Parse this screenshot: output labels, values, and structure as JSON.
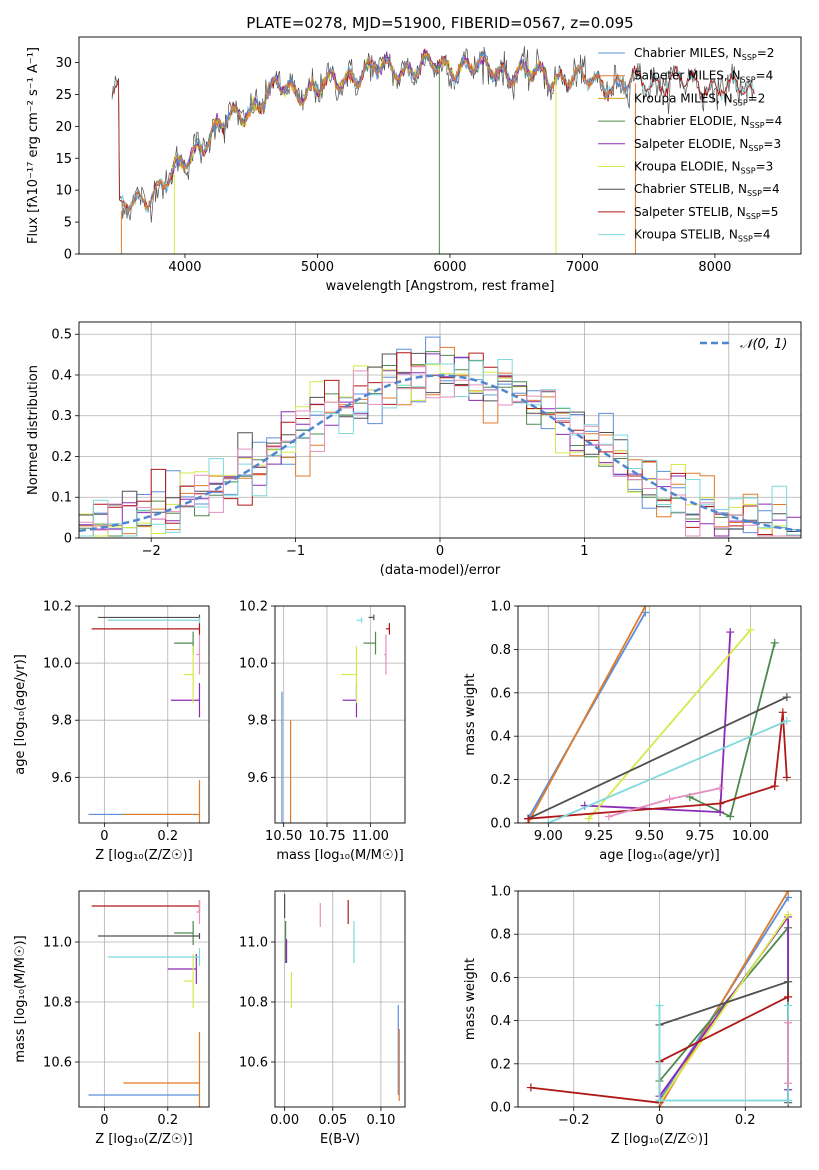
{
  "figure": {
    "title": "PLATE=0278, MJD=51900, FIBERID=0567, z=0.095"
  },
  "colors": {
    "Chabrier MILES": "#5b8fdc",
    "Salpeter MILES": "#e07b2a",
    "Kroupa MILES": "#d4a017",
    "Chabrier ELODIE": "#4d8a4d",
    "Salpeter ELODIE": "#8b2ab5",
    "Kroupa ELODIE": "#d8e84a",
    "Chabrier STELIB": "#505050",
    "Salpeter STELIB": "#b01818",
    "Kroupa STELIB": "#7fd9dc",
    "Pink": "#e58fc0"
  },
  "chart_data": [
    {
      "id": "spectrum",
      "type": "line",
      "xlabel": "wavelength [Angstrom, rest frame]",
      "ylabel": "Flux [fλ10⁻¹⁷ erg cm⁻² s⁻¹ A⁻¹]",
      "xlim": [
        3200,
        8650
      ],
      "ylim": [
        0,
        34
      ],
      "xticks": [
        4000,
        5000,
        6000,
        7000,
        8000
      ],
      "yticks": [
        0,
        5,
        10,
        15,
        20,
        25,
        30
      ],
      "grid": false,
      "legend_position": "top-right",
      "legend": [
        {
          "name": "Chabrier MILES",
          "nssp": 2
        },
        {
          "name": "Salpeter MILES",
          "nssp": 4
        },
        {
          "name": "Kroupa MILES",
          "nssp": 2
        },
        {
          "name": "Chabrier ELODIE",
          "nssp": 4
        },
        {
          "name": "Salpeter ELODIE",
          "nssp": 3
        },
        {
          "name": "Kroupa ELODIE",
          "nssp": 3
        },
        {
          "name": "Chabrier STELIB",
          "nssp": 4
        },
        {
          "name": "Salpeter STELIB",
          "nssp": 5
        },
        {
          "name": "Kroupa STELIB",
          "nssp": 4
        }
      ],
      "continuum": {
        "x": [
          3500,
          3700,
          3900,
          4100,
          4300,
          4500,
          4700,
          4900,
          5100,
          5300,
          5500,
          5700,
          5900,
          6100,
          6300,
          6500,
          6700,
          6900,
          7100,
          7300,
          7500,
          7700,
          7900,
          8100,
          8400
        ],
        "y": [
          6.5,
          9,
          12,
          17,
          20.5,
          23,
          26,
          25.5,
          26.5,
          28.5,
          29,
          29,
          29.5,
          29.5,
          29,
          28.5,
          28,
          27.5,
          27,
          26.5,
          27,
          27,
          26.5,
          26,
          25.5
        ]
      }
    },
    {
      "id": "residuals",
      "type": "histogram",
      "xlabel": "(data-model)/error",
      "ylabel": "Normed distribution",
      "xlim": [
        -2.5,
        2.5
      ],
      "ylim": [
        0,
        0.53
      ],
      "xticks": [
        -2,
        -1,
        0,
        1,
        2
      ],
      "yticks": [
        0,
        0.1,
        0.2,
        0.3,
        0.4,
        0.5
      ],
      "grid": true,
      "legend_position": "top-right",
      "reference_label": "𝒩(0, 1)",
      "bin_width": 0.1
    },
    {
      "id": "age_vs_Z",
      "type": "scatter",
      "xlabel": "Z [log₁₀(Z/Z☉)]",
      "ylabel": "age  [log₁₀(age/yr)]",
      "xlim": [
        -0.08,
        0.33
      ],
      "ylim": [
        9.44,
        10.2
      ],
      "xticks": [
        0,
        0.2
      ],
      "yticks": [
        9.6,
        9.8,
        10.0,
        10.2
      ],
      "grid": true,
      "points": [
        {
          "series": "Chabrier MILES",
          "x": 0.3,
          "y": 9.47,
          "xerr": 0.35,
          "yerr": 0.0
        },
        {
          "series": "Salpeter MILES",
          "x": 0.3,
          "y": 9.47,
          "xerr": 0.24,
          "yerr": 0.12
        },
        {
          "series": "Chabrier ELODIE",
          "x": 0.28,
          "y": 10.07,
          "xerr": 0.06,
          "yerr": 0.04
        },
        {
          "series": "Salpeter ELODIE",
          "x": 0.3,
          "y": 9.87,
          "xerr": 0.09,
          "yerr": 0.06
        },
        {
          "series": "Kroupa ELODIE",
          "x": 0.28,
          "y": 9.96,
          "xerr": 0.03,
          "yerr": 0.1
        },
        {
          "series": "Chabrier STELIB",
          "x": 0.3,
          "y": 10.16,
          "xerr": 0.32,
          "yerr": 0.01
        },
        {
          "series": "Salpeter STELIB",
          "x": 0.3,
          "y": 10.12,
          "xerr": 0.34,
          "yerr": 0.02
        },
        {
          "series": "Kroupa STELIB",
          "x": 0.3,
          "y": 10.15,
          "xerr": 0.29,
          "yerr": 0.01
        },
        {
          "series": "Pink",
          "x": 0.3,
          "y": 10.03,
          "xerr": 0.01,
          "yerr": 0.07
        }
      ]
    },
    {
      "id": "age_vs_mass",
      "type": "scatter",
      "xlabel": "mass [log₁₀(M/M☉)]",
      "ylabel": "",
      "xlim": [
        10.45,
        11.2
      ],
      "ylim": [
        9.44,
        10.2
      ],
      "xticks": [
        10.5,
        10.75,
        11.0
      ],
      "yticks": [
        9.6,
        9.8,
        10.0,
        10.2
      ],
      "grid": true,
      "points": [
        {
          "series": "Chabrier MILES",
          "x": 10.49,
          "y": 9.47,
          "xerr": 0.0,
          "yerr": 0.43
        },
        {
          "series": "Salpeter MILES",
          "x": 10.54,
          "y": 9.47,
          "xerr": 0.0,
          "yerr": 0.33
        },
        {
          "series": "Chabrier ELODIE",
          "x": 11.03,
          "y": 10.07,
          "xerr": 0.07,
          "yerr": 0.04
        },
        {
          "series": "Salpeter ELODIE",
          "x": 10.92,
          "y": 9.87,
          "xerr": 0.08,
          "yerr": 0.06
        },
        {
          "series": "Kroupa ELODIE",
          "x": 10.92,
          "y": 9.96,
          "xerr": 0.09,
          "yerr": 0.1
        },
        {
          "series": "Chabrier STELIB",
          "x": 11.02,
          "y": 10.16,
          "xerr": 0.03,
          "yerr": 0.01
        },
        {
          "series": "Salpeter STELIB",
          "x": 11.11,
          "y": 10.12,
          "xerr": 0.02,
          "yerr": 0.02
        },
        {
          "series": "Kroupa STELIB",
          "x": 10.95,
          "y": 10.15,
          "xerr": 0.03,
          "yerr": 0.01
        },
        {
          "series": "Pink",
          "x": 11.09,
          "y": 10.03,
          "xerr": 0.01,
          "yerr": 0.07
        }
      ]
    },
    {
      "id": "weight_vs_age",
      "type": "line",
      "xlabel": "age  [log₁₀(age/yr)]",
      "ylabel": "mass weight",
      "xlim": [
        8.85,
        10.25
      ],
      "ylim": [
        0,
        1
      ],
      "xticks": [
        9.0,
        9.25,
        9.5,
        9.75,
        10.0
      ],
      "yticks": [
        0,
        0.2,
        0.4,
        0.6,
        0.8,
        1.0
      ],
      "grid": true,
      "series": [
        {
          "name": "Chabrier MILES",
          "x": [
            8.9,
            9.48
          ],
          "y": [
            0.02,
            0.97
          ]
        },
        {
          "name": "Salpeter MILES",
          "x": [
            8.9,
            9.48
          ],
          "y": [
            0.0,
            1.0
          ]
        },
        {
          "name": "Chabrier ELODIE",
          "x": [
            9.7,
            9.9,
            10.12
          ],
          "y": [
            0.12,
            0.03,
            0.83
          ]
        },
        {
          "name": "Salpeter ELODIE",
          "x": [
            9.18,
            9.85,
            9.9
          ],
          "y": [
            0.08,
            0.05,
            0.88
          ]
        },
        {
          "name": "Kroupa ELODIE",
          "x": [
            9.2,
            10.0
          ],
          "y": [
            0.02,
            0.89
          ]
        },
        {
          "name": "Chabrier STELIB",
          "x": [
            8.9,
            10.18
          ],
          "y": [
            0.02,
            0.58
          ]
        },
        {
          "name": "Salpeter STELIB",
          "x": [
            8.9,
            9.85,
            10.12,
            10.16,
            10.18
          ],
          "y": [
            0.02,
            0.09,
            0.17,
            0.51,
            0.21
          ]
        },
        {
          "name": "Kroupa STELIB",
          "x": [
            9.0,
            10.18
          ],
          "y": [
            0.0,
            0.47
          ]
        },
        {
          "name": "Pink",
          "x": [
            9.3,
            9.6,
            9.85
          ],
          "y": [
            0.03,
            0.11,
            0.16
          ]
        }
      ]
    },
    {
      "id": "mass_vs_Z",
      "type": "scatter",
      "xlabel": "Z [log₁₀(Z/Z☉)]",
      "ylabel": "mass [log₁₀(M/M☉)]",
      "xlim": [
        -0.08,
        0.33
      ],
      "ylim": [
        10.45,
        11.17
      ],
      "xticks": [
        0,
        0.2
      ],
      "yticks": [
        10.6,
        10.8,
        11.0
      ],
      "grid": true,
      "points": [
        {
          "series": "Chabrier MILES",
          "x": 0.3,
          "y": 10.49,
          "xerr": 0.35,
          "yerr": 0.0
        },
        {
          "series": "Salpeter MILES",
          "x": 0.3,
          "y": 10.53,
          "xerr": 0.24,
          "yerr": 0.17
        },
        {
          "series": "Chabrier ELODIE",
          "x": 0.28,
          "y": 11.03,
          "xerr": 0.06,
          "yerr": 0.04
        },
        {
          "series": "Salpeter ELODIE",
          "x": 0.29,
          "y": 10.91,
          "xerr": 0.09,
          "yerr": 0.05
        },
        {
          "series": "Kroupa ELODIE",
          "x": 0.28,
          "y": 10.87,
          "xerr": 0.03,
          "yerr": 0.09
        },
        {
          "series": "Chabrier STELIB",
          "x": 0.3,
          "y": 11.02,
          "xerr": 0.32,
          "yerr": 0.01
        },
        {
          "series": "Salpeter STELIB",
          "x": 0.3,
          "y": 11.12,
          "xerr": 0.34,
          "yerr": 0.02
        },
        {
          "series": "Kroupa STELIB",
          "x": 0.3,
          "y": 10.95,
          "xerr": 0.29,
          "yerr": 0.03
        },
        {
          "series": "Pink",
          "x": 0.3,
          "y": 11.1,
          "xerr": 0.01,
          "yerr": 0.04
        }
      ]
    },
    {
      "id": "mass_vs_ebv",
      "type": "scatter",
      "xlabel": "E(B-V)",
      "ylabel": "",
      "xlim": [
        -0.01,
        0.125
      ],
      "ylim": [
        10.45,
        11.17
      ],
      "xticks": [
        0.0,
        0.05,
        0.1
      ],
      "yticks": [
        10.6,
        10.8,
        11.0
      ],
      "grid": true,
      "points": [
        {
          "series": "Chabrier MILES",
          "x": 0.118,
          "y": 10.64,
          "xerr": 0.0,
          "yerr": 0.15
        },
        {
          "series": "Salpeter MILES",
          "x": 0.119,
          "y": 10.59,
          "xerr": 0.0,
          "yerr": 0.12
        },
        {
          "series": "Chabrier ELODIE",
          "x": 0.001,
          "y": 11.0,
          "xerr": 0.0,
          "yerr": 0.07
        },
        {
          "series": "Salpeter ELODIE",
          "x": 0.002,
          "y": 10.97,
          "xerr": 0.0,
          "yerr": 0.04
        },
        {
          "series": "Kroupa ELODIE",
          "x": 0.007,
          "y": 10.84,
          "xerr": 0.0,
          "yerr": 0.06
        },
        {
          "series": "Chabrier STELIB",
          "x": 0.0,
          "y": 11.12,
          "xerr": 0.0,
          "yerr": 0.04
        },
        {
          "series": "Salpeter STELIB",
          "x": 0.066,
          "y": 11.1,
          "xerr": 0.0,
          "yerr": 0.04
        },
        {
          "series": "Kroupa STELIB",
          "x": 0.072,
          "y": 11.0,
          "xerr": 0.0,
          "yerr": 0.07
        },
        {
          "series": "Pink",
          "x": 0.037,
          "y": 11.09,
          "xerr": 0.0,
          "yerr": 0.04
        }
      ]
    },
    {
      "id": "weight_vs_Z",
      "type": "line",
      "xlabel": "Z [log₁₀(Z/Z☉)]",
      "ylabel": "mass weight",
      "xlim": [
        -0.33,
        0.33
      ],
      "ylim": [
        0,
        1
      ],
      "xticks": [
        -0.2,
        0.0,
        0.2
      ],
      "yticks": [
        0,
        0.2,
        0.4,
        0.6,
        0.8,
        1.0
      ],
      "grid": true,
      "series": [
        {
          "name": "Chabrier MILES",
          "x": [
            0.0,
            0.3
          ],
          "y": [
            0.03,
            0.97
          ]
        },
        {
          "name": "Salpeter MILES",
          "x": [
            0.0,
            0.3
          ],
          "y": [
            0.0,
            1.0
          ]
        },
        {
          "name": "Chabrier ELODIE",
          "x": [
            0.0,
            0.3,
            0.3
          ],
          "y": [
            0.12,
            0.83,
            0.03
          ]
        },
        {
          "name": "Salpeter ELODIE",
          "x": [
            0.0,
            0.3,
            0.3
          ],
          "y": [
            0.05,
            0.88,
            0.08
          ]
        },
        {
          "name": "Kroupa ELODIE",
          "x": [
            0.0,
            0.3
          ],
          "y": [
            0.02,
            0.89
          ]
        },
        {
          "name": "Chabrier STELIB",
          "x": [
            0.0,
            0.3,
            0.3
          ],
          "y": [
            0.38,
            0.58,
            0.02
          ]
        },
        {
          "name": "Salpeter STELIB",
          "x": [
            -0.3,
            0.0,
            0.0,
            0.3
          ],
          "y": [
            0.09,
            0.02,
            0.21,
            0.51
          ]
        },
        {
          "name": "Kroupa STELIB",
          "x": [
            0.0,
            0.0,
            0.3,
            0.3
          ],
          "y": [
            0.47,
            0.03,
            0.03,
            0.47
          ]
        },
        {
          "name": "Pink",
          "x": [
            0.3,
            0.3
          ],
          "y": [
            0.11,
            0.39
          ]
        }
      ]
    }
  ]
}
